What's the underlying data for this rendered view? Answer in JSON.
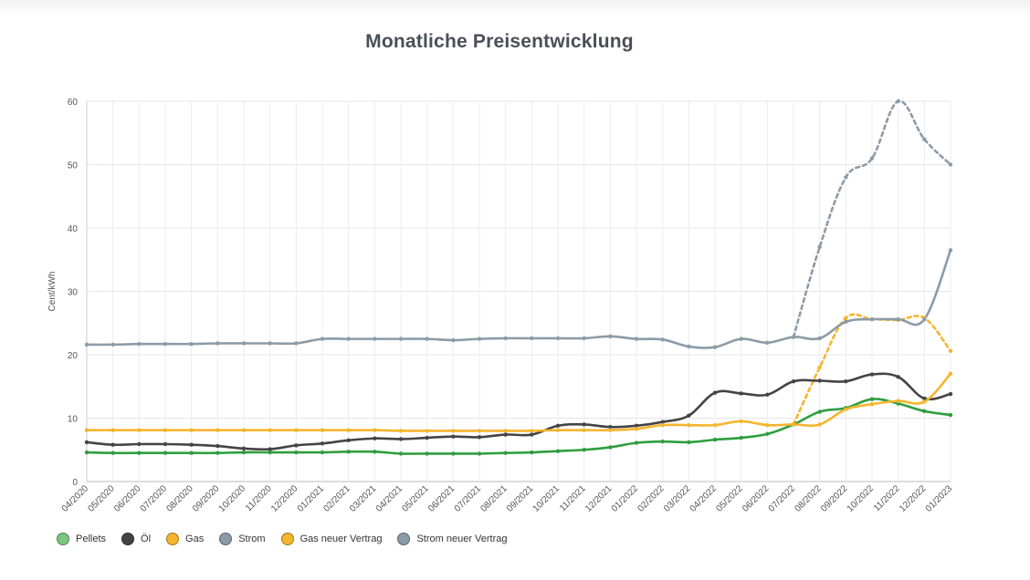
{
  "chart_data": {
    "type": "line",
    "title": "Monatliche Preisentwicklung",
    "xlabel": "",
    "ylabel": "Cent/kWh",
    "ylim": [
      0,
      60
    ],
    "yticks": [
      0,
      10,
      20,
      30,
      40,
      50,
      60
    ],
    "grid": true,
    "legend_position": "bottom-left",
    "categories": [
      "04/2020",
      "05/2020",
      "06/2020",
      "07/2020",
      "08/2020",
      "09/2020",
      "10/2020",
      "11/2020",
      "12/2020",
      "01/2021",
      "02/2021",
      "03/2021",
      "04/2021",
      "05/2021",
      "06/2021",
      "07/2021",
      "08/2021",
      "09/2021",
      "10/2021",
      "11/2021",
      "12/2021",
      "01/2022",
      "02/2022",
      "03/2022",
      "04/2022",
      "05/2022",
      "06/2022",
      "07/2022",
      "08/2022",
      "09/2022",
      "10/2022",
      "11/2022",
      "12/2022",
      "01/2023"
    ],
    "series": [
      {
        "name": "Pellets",
        "color": "#2e9e3e",
        "legend_color": "#7cc77f",
        "dashed": false,
        "values": [
          4.6,
          4.5,
          4.5,
          4.5,
          4.5,
          4.5,
          4.6,
          4.6,
          4.6,
          4.6,
          4.7,
          4.7,
          4.4,
          4.4,
          4.4,
          4.4,
          4.5,
          4.6,
          4.8,
          5.0,
          5.4,
          6.1,
          6.3,
          6.2,
          6.6,
          6.9,
          7.5,
          9.0,
          11.0,
          11.6,
          13.0,
          12.3,
          11.1,
          10.5
        ]
      },
      {
        "name": "Öl",
        "color": "#444444",
        "legend_color": "#444444",
        "dashed": false,
        "values": [
          6.2,
          5.8,
          5.9,
          5.9,
          5.8,
          5.6,
          5.2,
          5.1,
          5.7,
          6.0,
          6.5,
          6.8,
          6.7,
          6.9,
          7.1,
          7.0,
          7.4,
          7.4,
          8.8,
          9.0,
          8.6,
          8.8,
          9.4,
          10.4,
          14.0,
          13.9,
          13.7,
          15.8,
          15.9,
          15.8,
          16.9,
          16.5,
          13.1,
          13.8
        ]
      },
      {
        "name": "Gas",
        "color": "#f5b52e",
        "legend_color": "#f5b52e",
        "dashed": false,
        "values": [
          8.1,
          8.1,
          8.1,
          8.1,
          8.1,
          8.1,
          8.1,
          8.1,
          8.1,
          8.1,
          8.1,
          8.1,
          8.0,
          8.0,
          8.0,
          8.0,
          8.0,
          8.0,
          8.1,
          8.1,
          8.1,
          8.3,
          8.9,
          8.9,
          8.9,
          9.5,
          8.9,
          9.0,
          9.0,
          11.4,
          12.2,
          12.7,
          12.6,
          17.0
        ]
      },
      {
        "name": "Strom",
        "color": "#8c9ba7",
        "legend_color": "#8c9ba7",
        "dashed": false,
        "values": [
          21.6,
          21.6,
          21.7,
          21.7,
          21.7,
          21.8,
          21.8,
          21.8,
          21.8,
          22.5,
          22.5,
          22.5,
          22.5,
          22.5,
          22.3,
          22.5,
          22.6,
          22.6,
          22.6,
          22.6,
          22.9,
          22.5,
          22.4,
          21.3,
          21.2,
          22.5,
          21.9,
          22.8,
          22.6,
          25.2,
          25.6,
          25.6,
          25.6,
          36.5
        ]
      },
      {
        "name": "Gas neuer Vertrag",
        "color": "#f5b52e",
        "legend_color": "#f5b52e",
        "dashed": true,
        "values": [
          null,
          null,
          null,
          null,
          null,
          null,
          null,
          null,
          null,
          null,
          null,
          null,
          null,
          null,
          null,
          null,
          null,
          null,
          null,
          null,
          null,
          null,
          null,
          null,
          null,
          null,
          null,
          9.0,
          18.0,
          25.8,
          25.6,
          25.5,
          25.8,
          20.6
        ]
      },
      {
        "name": "Strom neuer Vertrag",
        "color": "#8c9ba7",
        "legend_color": "#8c9ba7",
        "dashed": true,
        "values": [
          null,
          null,
          null,
          null,
          null,
          null,
          null,
          null,
          null,
          null,
          null,
          null,
          null,
          null,
          null,
          null,
          null,
          null,
          null,
          null,
          null,
          null,
          null,
          null,
          null,
          null,
          null,
          22.8,
          37.0,
          48.0,
          51.0,
          60.0,
          54.0,
          50.0
        ]
      }
    ]
  }
}
